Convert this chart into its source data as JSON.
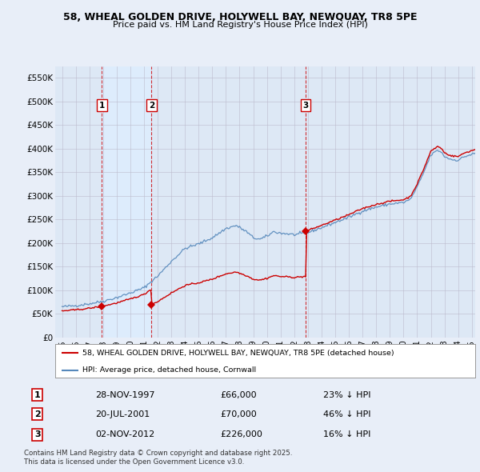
{
  "title_line1": "58, WHEAL GOLDEN DRIVE, HOLYWELL BAY, NEWQUAY, TR8 5PE",
  "title_line2": "Price paid vs. HM Land Registry's House Price Index (HPI)",
  "sale_color": "#cc0000",
  "hpi_color": "#5588bb",
  "shade_color": "#ddeeff",
  "legend_sale": "58, WHEAL GOLDEN DRIVE, HOLYWELL BAY, NEWQUAY, TR8 5PE (detached house)",
  "legend_hpi": "HPI: Average price, detached house, Cornwall",
  "table_rows": [
    [
      "1",
      "28-NOV-1997",
      "£66,000",
      "23% ↓ HPI"
    ],
    [
      "2",
      "20-JUL-2001",
      "£70,000",
      "46% ↓ HPI"
    ],
    [
      "3",
      "02-NOV-2012",
      "£226,000",
      "16% ↓ HPI"
    ]
  ],
  "footnote": "Contains HM Land Registry data © Crown copyright and database right 2025.\nThis data is licensed under the Open Government Licence v3.0.",
  "ylim": [
    0,
    575000
  ],
  "yticks": [
    0,
    50000,
    100000,
    150000,
    200000,
    250000,
    300000,
    350000,
    400000,
    450000,
    500000,
    550000
  ],
  "ytick_labels": [
    "£0",
    "£50K",
    "£100K",
    "£150K",
    "£200K",
    "£250K",
    "£300K",
    "£350K",
    "£400K",
    "£450K",
    "£500K",
    "£550K"
  ],
  "background_color": "#e8eef8",
  "plot_bg_color": "#dde8f5",
  "grid_color": "#bbbbcc",
  "sale_year_floats": [
    1997.92,
    2001.55,
    2012.84
  ],
  "sale_prices": [
    66000,
    70000,
    226000
  ],
  "sale_labels": [
    "1",
    "2",
    "3"
  ]
}
